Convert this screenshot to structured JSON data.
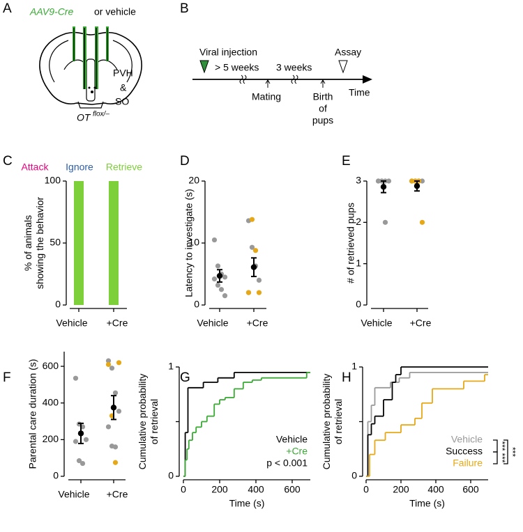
{
  "panels": {
    "A": {
      "label": "A",
      "virus": "AAV9-Cre",
      "virus_suffix": "or vehicle",
      "region_lines": [
        "PVH",
        "&",
        "SO"
      ],
      "genotype": "OT",
      "genotype_sup": "flox/–"
    },
    "B": {
      "label": "B",
      "events": [
        "Viral injection",
        "> 5 weeks",
        "3 weeks",
        "Assay",
        "Mating"
      ],
      "birth_lines": [
        "Birth",
        "of",
        "pups"
      ],
      "axis_label": "Time"
    }
  },
  "chart_data": [
    {
      "panel": "C",
      "type": "bar",
      "categories": [
        "Vehicle",
        "+Cre"
      ],
      "series": [
        {
          "name": "Attack",
          "color": "#e5007e",
          "values": [
            0,
            0
          ]
        },
        {
          "name": "Ignore",
          "color": "#2b5ca8",
          "values": [
            0,
            0
          ]
        },
        {
          "name": "Retrieve",
          "color": "#7ed03a",
          "values": [
            100,
            100
          ]
        }
      ],
      "ylim": [
        0,
        100
      ],
      "yticks": [
        0,
        50,
        100
      ],
      "ylabel": [
        "% of animals",
        "showing the behavior"
      ]
    },
    {
      "panel": "D",
      "type": "strip",
      "categories": [
        "Vehicle",
        "+Cre"
      ],
      "groups": [
        {
          "points": [
            {
              "color": "#999999",
              "values": [
                10.5,
                6.3,
                5.0,
                4.5,
                4.2,
                3.2,
                2.5,
                1.5
              ]
            }
          ],
          "mean": 4.7,
          "sem": 1.0
        },
        {
          "points": [
            {
              "color": "#999999",
              "values": [
                13.6,
                9.3,
                6.3,
                4.0,
                2.0
              ]
            },
            {
              "color": "#e6a817",
              "values": [
                13.8,
                8.8,
                2.0,
                2.0
              ]
            }
          ],
          "mean": 6.1,
          "sem": 1.5
        }
      ],
      "ylim": [
        0,
        20
      ],
      "yticks": [
        0,
        10,
        20
      ],
      "ylabel": [
        "Latency to investigate (s)"
      ]
    },
    {
      "panel": "E",
      "type": "strip",
      "categories": [
        "Vehicle",
        "+Cre"
      ],
      "groups": [
        {
          "points": [
            {
              "color": "#999999",
              "values": [
                3,
                3,
                3,
                3,
                3,
                3,
                2
              ]
            }
          ],
          "mean": 2.86,
          "sem": 0.14
        },
        {
          "points": [
            {
              "color": "#999999",
              "values": [
                3,
                3,
                3,
                3
              ]
            },
            {
              "color": "#e6a817",
              "values": [
                3,
                3,
                3,
                2
              ]
            }
          ],
          "mean": 2.88,
          "sem": 0.12
        }
      ],
      "ylim": [
        0,
        3
      ],
      "yticks": [
        0,
        1,
        2,
        3
      ],
      "ylabel": [
        "# of retrieved pups"
      ]
    },
    {
      "panel": "F",
      "type": "strip",
      "categories": [
        "Vehicle",
        "+Cre"
      ],
      "groups": [
        {
          "points": [
            {
              "color": "#999999",
              "values": [
                535,
                285,
                270,
                200,
                190,
                85,
                70
              ]
            }
          ],
          "mean": 234,
          "sem": 55
        },
        {
          "points": [
            {
              "color": "#999999",
              "values": [
                630,
                590,
                455,
                355,
                270,
                165,
                160
              ]
            },
            {
              "color": "#e6a817",
              "values": [
                620,
                610,
                330,
                75
              ]
            }
          ],
          "mean": 375,
          "sem": 65
        }
      ],
      "ylim": [
        0,
        680
      ],
      "yticks": [
        0,
        200,
        400,
        600
      ],
      "ylabel": [
        "Parental care duration (s)"
      ]
    },
    {
      "panel": "G",
      "type": "step",
      "series": [
        {
          "name": "Vehicle",
          "color": "#000000",
          "x": [
            0,
            10,
            25,
            110,
            190,
            280
          ],
          "values": [
            0,
            0.4,
            0.81,
            0.86,
            0.9,
            0.95
          ]
        },
        {
          "name": "+Cre",
          "color": "#3aaa35",
          "x": [
            0,
            10,
            20,
            30,
            50,
            70,
            100,
            130,
            170,
            200,
            230,
            280,
            330,
            380,
            430,
            680
          ],
          "values": [
            0,
            0.15,
            0.25,
            0.33,
            0.4,
            0.45,
            0.5,
            0.55,
            0.66,
            0.7,
            0.72,
            0.8,
            0.86,
            0.88,
            0.9,
            0.95
          ]
        }
      ],
      "xlim": [
        0,
        700
      ],
      "xticks": [
        0,
        200,
        400,
        600
      ],
      "ylim": [
        0,
        1
      ],
      "yticks": [
        0,
        1
      ],
      "minor_yticks": [
        0.5
      ],
      "xlabel": "Time (s)",
      "ylabel": [
        "Cumulative probability",
        "of retrieval"
      ],
      "annotations": [
        "p < 0.001"
      ]
    },
    {
      "panel": "H",
      "type": "step",
      "series": [
        {
          "name": "Vehicle",
          "color": "#999999",
          "x": [
            0,
            10,
            30,
            50,
            140,
            190,
            250
          ],
          "values": [
            0,
            0.5,
            0.65,
            0.81,
            0.86,
            0.9,
            0.95
          ]
        },
        {
          "name": "Success",
          "color": "#000000",
          "x": [
            0,
            10,
            30,
            50,
            100,
            150,
            170,
            200
          ],
          "values": [
            0,
            0.38,
            0.48,
            0.55,
            0.7,
            0.86,
            0.93,
            1.0
          ]
        },
        {
          "name": "Failure",
          "color": "#e6a817",
          "x": [
            0,
            20,
            50,
            110,
            160,
            200,
            280,
            320,
            380,
            560,
            680
          ],
          "values": [
            0,
            0.2,
            0.33,
            0.4,
            0.4,
            0.47,
            0.53,
            0.67,
            0.8,
            0.87,
            0.93
          ]
        }
      ],
      "xlim": [
        0,
        700
      ],
      "xticks": [
        0,
        200,
        400,
        600
      ],
      "ylim": [
        0,
        1
      ],
      "yticks": [
        0,
        1
      ],
      "minor_yticks": [
        0.5
      ],
      "xlabel": "Time (s)",
      "ylabel": [
        "Cumulative probability",
        "of retrieval"
      ],
      "annotations": [
        "***",
        "***",
        "***"
      ]
    }
  ]
}
